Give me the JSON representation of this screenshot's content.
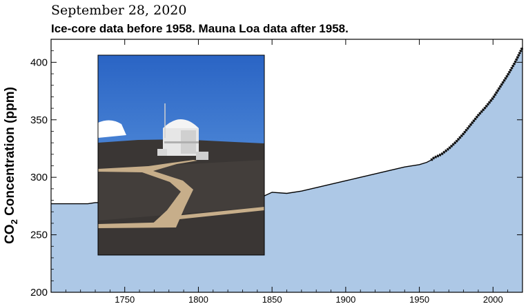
{
  "header": {
    "date": "September 28, 2020",
    "subtitle": "Ice-core data before 1958. Mauna Loa data after 1958."
  },
  "colors": {
    "fill": "#adc8e6",
    "line": "#000000",
    "photo_sky": "#2f6fc9",
    "photo_ground": "#3a3634",
    "boardwalk": "#c7ae8a"
  },
  "photo": {
    "description_icon": "observatory-photo"
  },
  "chart_data": {
    "type": "area",
    "title": "",
    "xlabel": "",
    "ylabel_parts": {
      "pre": "CO",
      "sub": "2",
      "post": " Concentration (ppm)"
    },
    "xlim": [
      1700,
      2020
    ],
    "ylim": [
      200,
      420
    ],
    "xticks": [
      1750,
      1800,
      1850,
      1900,
      1950,
      2000
    ],
    "yticks": [
      200,
      250,
      300,
      350,
      400
    ],
    "grid": false,
    "series": [
      {
        "x": [
          1700,
          1725,
          1730,
          1750,
          1775,
          1800,
          1820,
          1840,
          1845,
          1850,
          1860,
          1870,
          1880,
          1890,
          1900,
          1910,
          1920,
          1930,
          1940,
          1950,
          1955,
          1958,
          1960,
          1965,
          1970,
          1975,
          1980,
          1985,
          1990,
          1995,
          2000,
          2005,
          2010,
          2015,
          2020
        ],
        "y": [
          277,
          277,
          278,
          278,
          278,
          279,
          280,
          281,
          284,
          287,
          286,
          288,
          291,
          294,
          297,
          300,
          303,
          306,
          309,
          311,
          313,
          315,
          317,
          320,
          325,
          331,
          338,
          346,
          354,
          361,
          369,
          379,
          389,
          400,
          413
        ]
      }
    ]
  }
}
